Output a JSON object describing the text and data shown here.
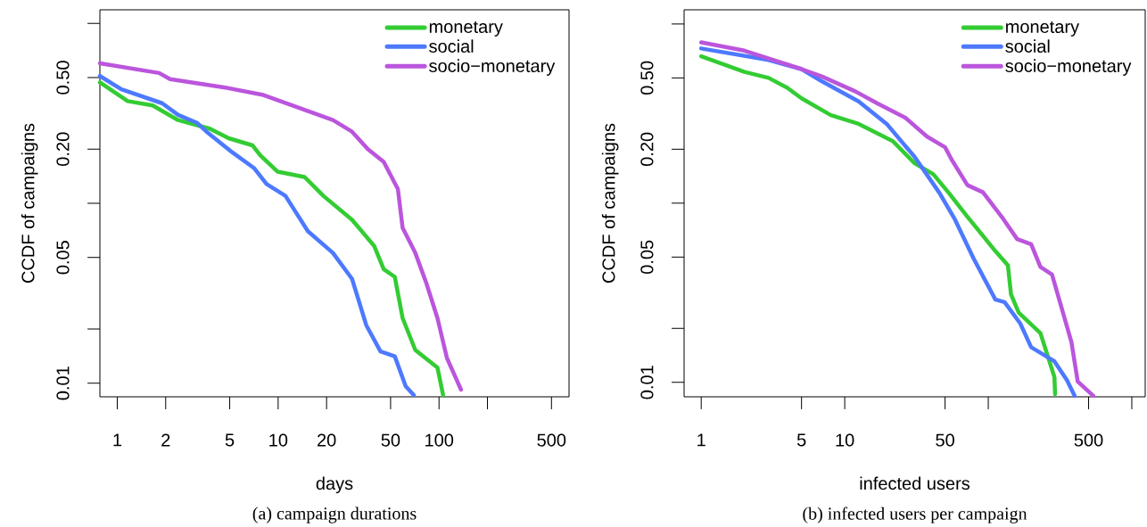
{
  "chart_data": [
    {
      "type": "line",
      "xlabel": "days",
      "ylabel": "CCDF of campaigns",
      "log": "xy",
      "legend": "top right",
      "annotations": [
        "(a) campaign durations"
      ],
      "xlim": [
        0.78,
        643
      ],
      "ylim": [
        0.0084,
        1.19
      ],
      "xticks": [
        1,
        2,
        5,
        10,
        20,
        50,
        100,
        {
          "value": 200,
          "label": null
        },
        500
      ],
      "yticks": [
        {
          "value": 0.01,
          "label": "0.01"
        },
        {
          "value": 0.02,
          "label": null
        },
        {
          "value": 0.05,
          "label": "0.05"
        },
        {
          "value": 0.1,
          "label": null
        },
        {
          "value": 0.2,
          "label": "0.20"
        },
        {
          "value": 0.5,
          "label": "0.50"
        },
        {
          "value": 1,
          "label": null
        }
      ],
      "series": [
        {
          "name": "monetary",
          "color": "#33cc33",
          "x": [
            0.78,
            1.16,
            1.66,
            2.39,
            3.75,
            4.92,
            6.92,
            7.74,
            9.9,
            14.6,
            19.1,
            28.8,
            39.5,
            45.3,
            53.1,
            59.4,
            71.2,
            97.8,
            106
          ],
          "values": [
            0.47,
            0.37,
            0.35,
            0.29,
            0.26,
            0.23,
            0.21,
            0.185,
            0.15,
            0.14,
            0.11,
            0.081,
            0.058,
            0.043,
            0.039,
            0.023,
            0.0153,
            0.0122,
            0.0086
          ]
        },
        {
          "name": "social",
          "color": "#4d79ff",
          "x": [
            0.78,
            1.06,
            1.9,
            2.39,
            3.13,
            3.59,
            5.15,
            7.08,
            8.47,
            11.1,
            15.3,
            21.9,
            28.8,
            35.3,
            43.3,
            53.1,
            62.1,
            69.6
          ],
          "values": [
            0.51,
            0.43,
            0.36,
            0.31,
            0.28,
            0.25,
            0.193,
            0.157,
            0.128,
            0.11,
            0.07,
            0.053,
            0.038,
            0.021,
            0.015,
            0.0141,
            0.0096,
            0.0086
          ]
        },
        {
          "name": "socio−monetary",
          "color": "#bb55dd",
          "x": [
            0.78,
            1.82,
            2.13,
            4.7,
            8.1,
            12.2,
            21.9,
            28.8,
            36.1,
            45.3,
            55.5,
            59.4,
            71.2,
            83.4,
            97.8,
            112,
            137
          ],
          "values": [
            0.6,
            0.53,
            0.49,
            0.44,
            0.4,
            0.35,
            0.29,
            0.25,
            0.2,
            0.17,
            0.12,
            0.073,
            0.053,
            0.036,
            0.023,
            0.0138,
            0.0092
          ]
        }
      ]
    },
    {
      "type": "line",
      "xlabel": "infected users",
      "ylabel": "CCDF of campaigns",
      "log": "xy",
      "legend": "top right",
      "annotations": [
        "(b) infected users per campaign"
      ],
      "xlim": [
        0.76,
        1240
      ],
      "ylim": [
        0.0083,
        1.2
      ],
      "xticks": [
        1,
        5,
        10,
        50,
        {
          "value": 100,
          "label": null
        },
        500,
        {
          "value": 1000,
          "label": null
        }
      ],
      "yticks": [
        {
          "value": 0.01,
          "label": "0.01"
        },
        {
          "value": 0.02,
          "label": null
        },
        {
          "value": 0.05,
          "label": "0.05"
        },
        {
          "value": 0.1,
          "label": null
        },
        {
          "value": 0.2,
          "label": "0.20"
        },
        {
          "value": 0.5,
          "label": "0.50"
        },
        {
          "value": 1,
          "label": null
        }
      ],
      "series": [
        {
          "name": "monetary",
          "color": "#33cc33",
          "x": [
            1,
            2,
            2.95,
            3.98,
            5,
            8.0,
            12.5,
            21.6,
            30.7,
            41.4,
            53.1,
            71.6,
            112,
            137,
            144,
            163,
            231,
            289,
            292
          ],
          "values": [
            0.66,
            0.54,
            0.5,
            0.44,
            0.385,
            0.31,
            0.277,
            0.222,
            0.167,
            0.145,
            0.114,
            0.084,
            0.054,
            0.045,
            0.031,
            0.0245,
            0.0188,
            0.0107,
            0.0086
          ]
        },
        {
          "name": "social",
          "color": "#4d79ff",
          "x": [
            1,
            2.95,
            5,
            6.9,
            12.5,
            19.6,
            30.7,
            45.7,
            58.6,
            79.1,
            112,
            130,
            167,
            199,
            289,
            353,
            400
          ],
          "values": [
            0.73,
            0.63,
            0.56,
            0.48,
            0.37,
            0.277,
            0.181,
            0.114,
            0.081,
            0.049,
            0.029,
            0.028,
            0.0213,
            0.0157,
            0.0131,
            0.0103,
            0.0084
          ]
        },
        {
          "name": "socio−monetary",
          "color": "#bb55dd",
          "x": [
            1,
            2,
            5,
            6.9,
            11.9,
            16.9,
            26.4,
            37.5,
            50,
            55.8,
            71.6,
            91.8,
            124,
            159,
            199,
            231,
            278,
            336,
            380,
            420,
            539
          ],
          "values": [
            0.79,
            0.71,
            0.56,
            0.51,
            0.42,
            0.36,
            0.3,
            0.235,
            0.205,
            0.174,
            0.126,
            0.115,
            0.084,
            0.063,
            0.059,
            0.044,
            0.04,
            0.0236,
            0.0167,
            0.0101,
            0.0084
          ]
        }
      ]
    }
  ]
}
